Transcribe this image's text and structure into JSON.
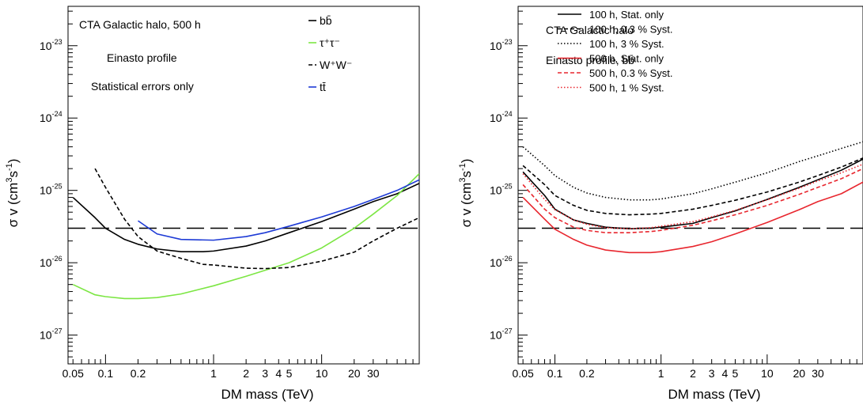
{
  "chart_data": [
    {
      "type": "line",
      "xscale": "log",
      "yscale": "log",
      "xlim": [
        0.045,
        80
      ],
      "ylim": [
        4e-28,
        3.5e-23
      ],
      "xlabel": "DM mass (TeV)",
      "ylabel_main": "σ v (cm",
      "ylabel_sup1": "3",
      "ylabel_mid": "s",
      "ylabel_sup2": "-1",
      "ylabel_end": ")",
      "xticks": [
        {
          "v": 0.05,
          "t": "0.05"
        },
        {
          "v": 0.1,
          "t": "0.1"
        },
        {
          "v": 0.2,
          "t": "0.2"
        },
        {
          "v": 1,
          "t": "1"
        },
        {
          "v": 2,
          "t": "2"
        },
        {
          "v": 3,
          "t": "3"
        },
        {
          "v": 4,
          "t": "4"
        },
        {
          "v": 5,
          "t": "5"
        },
        {
          "v": 10,
          "t": "10"
        },
        {
          "v": 20,
          "t": "20"
        },
        {
          "v": 30,
          "t": "30"
        }
      ],
      "yticks": [
        {
          "v": 1e-27,
          "base": "10",
          "exp": "-27"
        },
        {
          "v": 1e-26,
          "base": "10",
          "exp": "-26"
        },
        {
          "v": 1e-25,
          "base": "10",
          "exp": "-25"
        },
        {
          "v": 1e-24,
          "base": "10",
          "exp": "-24"
        },
        {
          "v": 1e-23,
          "base": "10",
          "exp": "-23"
        }
      ],
      "annotations": [
        "CTA Galactic halo, 500 h",
        "Einasto profile",
        "Statistical errors only"
      ],
      "reference_line": {
        "y": 3e-26,
        "style": "longdash",
        "color": "#000000"
      },
      "series": [
        {
          "name": "bb̄",
          "color": "#000000",
          "dash": "solid",
          "x": [
            0.05,
            0.08,
            0.1,
            0.15,
            0.2,
            0.3,
            0.5,
            0.8,
            1,
            2,
            3,
            5,
            10,
            20,
            30,
            50,
            80
          ],
          "y": [
            8e-26,
            4.2e-26,
            3e-26,
            2.1e-26,
            1.8e-26,
            1.55e-26,
            1.42e-26,
            1.42e-26,
            1.45e-26,
            1.7e-26,
            2e-26,
            2.6e-26,
            3.7e-26,
            5.5e-26,
            7e-26,
            9e-26,
            1.25e-25
          ]
        },
        {
          "name": "τ⁺τ⁻",
          "color": "#7ce643",
          "dash": "solid",
          "x": [
            0.05,
            0.08,
            0.1,
            0.15,
            0.2,
            0.3,
            0.5,
            1,
            2,
            5,
            10,
            20,
            30,
            50,
            80
          ],
          "y": [
            5e-27,
            3.6e-27,
            3.4e-27,
            3.2e-27,
            3.2e-27,
            3.3e-27,
            3.7e-27,
            4.8e-27,
            6.5e-27,
            1e-26,
            1.6e-26,
            3e-26,
            4.7e-26,
            8.5e-26,
            1.7e-25
          ]
        },
        {
          "name": "W⁺W⁻",
          "color": "#000000",
          "dash": "dash",
          "x": [
            0.08,
            0.1,
            0.15,
            0.2,
            0.3,
            0.5,
            0.8,
            1,
            2,
            3,
            5,
            10,
            20,
            30,
            50,
            80
          ],
          "y": [
            2e-25,
            1.1e-25,
            4e-26,
            2.3e-26,
            1.45e-26,
            1.15e-26,
            9.5e-27,
            9.3e-27,
            8.4e-27,
            8.3e-27,
            8.6e-27,
            1.05e-26,
            1.4e-26,
            2e-26,
            3e-26,
            4.2e-26
          ]
        },
        {
          "name": "tt̄",
          "color": "#1e3bd6",
          "dash": "solid",
          "x": [
            0.2,
            0.3,
            0.5,
            1,
            2,
            3,
            5,
            10,
            20,
            30,
            50,
            80
          ],
          "y": [
            3.8e-26,
            2.5e-26,
            2.1e-26,
            2.05e-26,
            2.3e-26,
            2.6e-26,
            3.2e-26,
            4.3e-26,
            6e-26,
            7.5e-26,
            1e-25,
            1.4e-25
          ]
        }
      ]
    },
    {
      "type": "line",
      "xscale": "log",
      "yscale": "log",
      "xlim": [
        0.045,
        80
      ],
      "ylim": [
        4e-28,
        3.5e-23
      ],
      "xlabel": "DM mass (TeV)",
      "ylabel_main": "σ v (cm",
      "ylabel_sup1": "3",
      "ylabel_mid": "s",
      "ylabel_sup2": "-1",
      "ylabel_end": ")",
      "xticks": [
        {
          "v": 0.05,
          "t": "0.05"
        },
        {
          "v": 0.1,
          "t": "0.1"
        },
        {
          "v": 0.2,
          "t": "0.2"
        },
        {
          "v": 1,
          "t": "1"
        },
        {
          "v": 2,
          "t": "2"
        },
        {
          "v": 3,
          "t": "3"
        },
        {
          "v": 4,
          "t": "4"
        },
        {
          "v": 5,
          "t": "5"
        },
        {
          "v": 10,
          "t": "10"
        },
        {
          "v": 20,
          "t": "20"
        },
        {
          "v": 30,
          "t": "30"
        }
      ],
      "yticks": [
        {
          "v": 1e-27,
          "base": "10",
          "exp": "-27"
        },
        {
          "v": 1e-26,
          "base": "10",
          "exp": "-26"
        },
        {
          "v": 1e-25,
          "base": "10",
          "exp": "-25"
        },
        {
          "v": 1e-24,
          "base": "10",
          "exp": "-24"
        },
        {
          "v": 1e-23,
          "base": "10",
          "exp": "-23"
        }
      ],
      "annotations": [
        "CTA Galactic halo",
        "Einasto profile, bb̄"
      ],
      "reference_line": {
        "y": 3e-26,
        "style": "longdash",
        "color": "#000000"
      },
      "series": [
        {
          "name": "100 h, Stat. only",
          "color": "#000000",
          "dash": "solid",
          "x": [
            0.05,
            0.08,
            0.1,
            0.15,
            0.2,
            0.3,
            0.5,
            0.8,
            1,
            2,
            3,
            5,
            10,
            20,
            30,
            50,
            80
          ],
          "y": [
            1.8e-25,
            8.5e-26,
            5.5e-26,
            3.9e-26,
            3.5e-26,
            3.1e-26,
            2.95e-26,
            3e-26,
            3.1e-26,
            3.5e-26,
            4.2e-26,
            5.2e-26,
            7.5e-26,
            1.1e-25,
            1.4e-25,
            1.9e-25,
            2.7e-25
          ]
        },
        {
          "name": "100 h, 0.3 % Syst.",
          "color": "#000000",
          "dash": "dash",
          "x": [
            0.05,
            0.08,
            0.1,
            0.15,
            0.2,
            0.3,
            0.5,
            0.8,
            1,
            2,
            3,
            5,
            10,
            20,
            30,
            50,
            80
          ],
          "y": [
            2.2e-25,
            1.2e-25,
            8.5e-26,
            6.2e-26,
            5.3e-26,
            4.8e-26,
            4.6e-26,
            4.7e-26,
            4.8e-26,
            5.5e-26,
            6.2e-26,
            7.3e-26,
            9.5e-26,
            1.3e-25,
            1.6e-25,
            2.1e-25,
            2.8e-25
          ]
        },
        {
          "name": "100 h, 3 % Syst.",
          "color": "#000000",
          "dash": "dot",
          "x": [
            0.05,
            0.08,
            0.1,
            0.15,
            0.2,
            0.3,
            0.5,
            0.8,
            1,
            2,
            3,
            5,
            10,
            20,
            30,
            50,
            80
          ],
          "y": [
            4e-25,
            2.2e-25,
            1.6e-25,
            1.1e-25,
            9.2e-26,
            8e-26,
            7.4e-26,
            7.4e-26,
            7.6e-26,
            9e-26,
            1.05e-25,
            1.3e-25,
            1.75e-25,
            2.5e-25,
            3e-25,
            3.8e-25,
            4.7e-25
          ]
        },
        {
          "name": "500 h, Stat.  only",
          "color": "#e8262e",
          "dash": "solid",
          "x": [
            0.05,
            0.08,
            0.1,
            0.15,
            0.2,
            0.3,
            0.5,
            0.8,
            1,
            2,
            3,
            5,
            10,
            20,
            30,
            50,
            80
          ],
          "y": [
            8e-26,
            4e-26,
            2.9e-26,
            2.1e-26,
            1.75e-26,
            1.5e-26,
            1.38e-26,
            1.38e-26,
            1.42e-26,
            1.68e-26,
            1.95e-26,
            2.5e-26,
            3.6e-26,
            5.4e-26,
            7e-26,
            9e-26,
            1.3e-25
          ]
        },
        {
          "name": "500 h, 0.3 % Syst.",
          "color": "#e8262e",
          "dash": "dash",
          "x": [
            0.05,
            0.08,
            0.1,
            0.15,
            0.2,
            0.3,
            0.5,
            0.8,
            1,
            2,
            3,
            5,
            10,
            20,
            30,
            50,
            80
          ],
          "y": [
            1.2e-25,
            5.5e-26,
            4.2e-26,
            3.1e-26,
            2.8e-26,
            2.6e-26,
            2.6e-26,
            2.7e-26,
            2.8e-26,
            3.3e-26,
            3.8e-26,
            4.6e-26,
            6.2e-26,
            8.8e-26,
            1.1e-25,
            1.45e-25,
            2e-25
          ]
        },
        {
          "name": "500 h, 1 % Syst.",
          "color": "#e8262e",
          "dash": "dot",
          "x": [
            0.05,
            0.08,
            0.1,
            0.15,
            0.2,
            0.3,
            0.5,
            0.8,
            1,
            2,
            3,
            5,
            10,
            20,
            30,
            50,
            80
          ],
          "y": [
            1.7e-25,
            7.5e-26,
            5.4e-26,
            3.9e-26,
            3.4e-26,
            3.05e-26,
            2.95e-26,
            3.05e-26,
            3.2e-26,
            3.7e-26,
            4.3e-26,
            5.3e-26,
            7.4e-26,
            1.07e-25,
            1.35e-25,
            1.75e-25,
            2.3e-25
          ]
        }
      ]
    }
  ]
}
